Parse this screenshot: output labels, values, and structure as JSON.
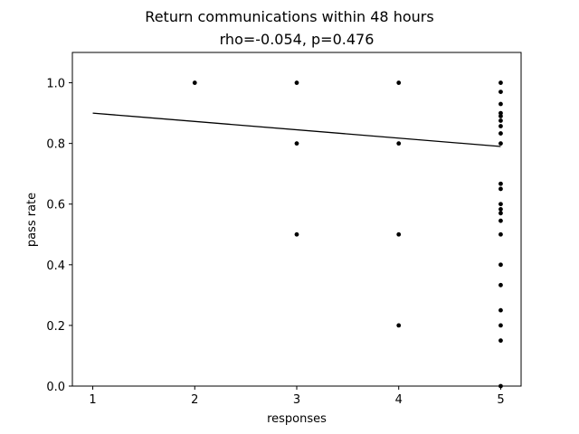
{
  "chart_data": {
    "type": "scatter",
    "title": "Return communications within 48 hours",
    "subtitle": "rho=-0.054, p=0.476",
    "xlabel": "responses",
    "ylabel": "pass rate",
    "xlim": [
      0.8,
      5.2
    ],
    "ylim": [
      0.0,
      1.1
    ],
    "xticks": [
      "1",
      "2",
      "3",
      "4",
      "5"
    ],
    "yticks": [
      "0.0",
      "0.2",
      "0.4",
      "0.6",
      "0.8",
      "1.0"
    ],
    "grid": false,
    "point_color": "#000000",
    "points": [
      {
        "x": 2,
        "y": 1.0
      },
      {
        "x": 3,
        "y": 1.0
      },
      {
        "x": 3,
        "y": 0.8
      },
      {
        "x": 3,
        "y": 0.5
      },
      {
        "x": 4,
        "y": 1.0
      },
      {
        "x": 4,
        "y": 0.8
      },
      {
        "x": 4,
        "y": 0.5
      },
      {
        "x": 4,
        "y": 0.2
      },
      {
        "x": 5,
        "y": 1.0
      },
      {
        "x": 5,
        "y": 0.97
      },
      {
        "x": 5,
        "y": 0.93
      },
      {
        "x": 5,
        "y": 0.9
      },
      {
        "x": 5,
        "y": 0.89
      },
      {
        "x": 5,
        "y": 0.875
      },
      {
        "x": 5,
        "y": 0.857
      },
      {
        "x": 5,
        "y": 0.833
      },
      {
        "x": 5,
        "y": 0.8
      },
      {
        "x": 5,
        "y": 0.667
      },
      {
        "x": 5,
        "y": 0.65
      },
      {
        "x": 5,
        "y": 0.6
      },
      {
        "x": 5,
        "y": 0.583
      },
      {
        "x": 5,
        "y": 0.57
      },
      {
        "x": 5,
        "y": 0.545
      },
      {
        "x": 5,
        "y": 0.5
      },
      {
        "x": 5,
        "y": 0.4
      },
      {
        "x": 5,
        "y": 0.333
      },
      {
        "x": 5,
        "y": 0.25
      },
      {
        "x": 5,
        "y": 0.2
      },
      {
        "x": 5,
        "y": 0.15
      },
      {
        "x": 5,
        "y": 0.0
      }
    ],
    "fit_line": {
      "x": [
        1,
        5
      ],
      "y": [
        0.9,
        0.79
      ]
    }
  }
}
